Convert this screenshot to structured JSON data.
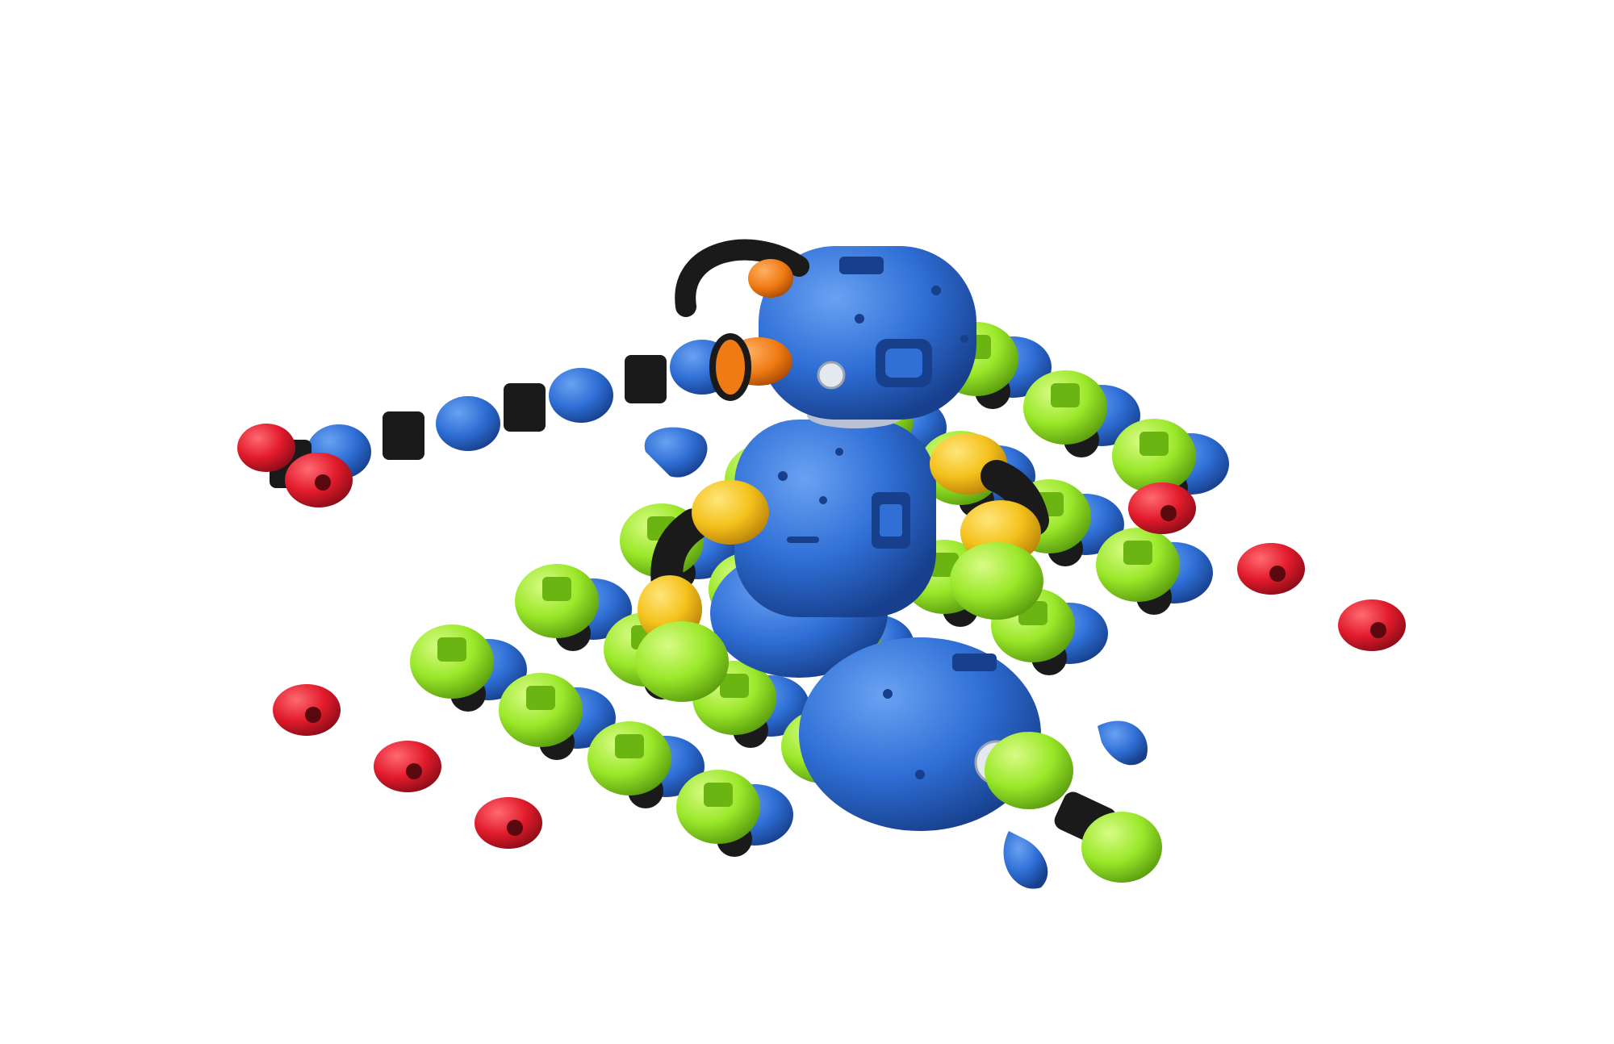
{
  "palette": {
    "background": "#ffffff",
    "body_blue": "#2f6fd6",
    "body_blue_light": "#5a93ea",
    "body_blue_dark": "#1d4ea6",
    "lime": "#9be82a",
    "lime_light": "#c9f56a",
    "lime_dark": "#6ab512",
    "red": "#e21b2c",
    "red_dark": "#a30f1c",
    "yellow": "#f4c21c",
    "yellow_dark": "#c8930a",
    "orange": "#f07a14",
    "black": "#1a1a1a",
    "grey": "#d8dce4"
  }
}
